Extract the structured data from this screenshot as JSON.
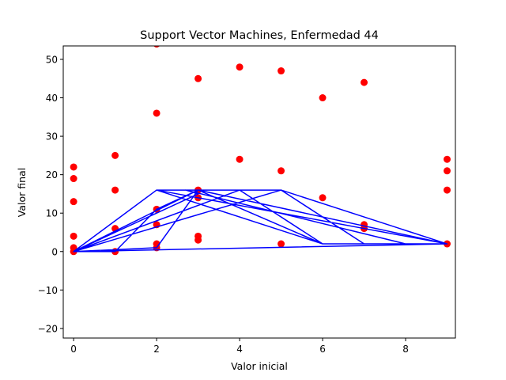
{
  "chart_data": {
    "type": "scatter",
    "title": "Support Vector Machines, Enfermedad 44",
    "xlabel": "Valor inicial",
    "ylabel": "Valor final",
    "xlim": [
      -0.25,
      9.2
    ],
    "ylim": [
      -22.5,
      53.5
    ],
    "xticks": [
      0,
      2,
      4,
      6,
      8
    ],
    "yticks": [
      -20,
      -10,
      0,
      10,
      20,
      30,
      40,
      50
    ],
    "scatter": {
      "color": "#ff0000",
      "points": [
        [
          0,
          22
        ],
        [
          0,
          19
        ],
        [
          0,
          13
        ],
        [
          0,
          4
        ],
        [
          0,
          1
        ],
        [
          0,
          0
        ],
        [
          1,
          25
        ],
        [
          1,
          16
        ],
        [
          1,
          6
        ],
        [
          1,
          0
        ],
        [
          2,
          54
        ],
        [
          2,
          36
        ],
        [
          2,
          11
        ],
        [
          2,
          7
        ],
        [
          2,
          2
        ],
        [
          2,
          1
        ],
        [
          3,
          45
        ],
        [
          3,
          16
        ],
        [
          3,
          14
        ],
        [
          3,
          4
        ],
        [
          3,
          3
        ],
        [
          4,
          48
        ],
        [
          4,
          24
        ],
        [
          5,
          47
        ],
        [
          5,
          21
        ],
        [
          5,
          2
        ],
        [
          6,
          40
        ],
        [
          6,
          14
        ],
        [
          7,
          44
        ],
        [
          7,
          7
        ],
        [
          7,
          6
        ],
        [
          9,
          24
        ],
        [
          9,
          21
        ],
        [
          9,
          16
        ],
        [
          9,
          2
        ]
      ]
    },
    "line": {
      "color": "#0000ff",
      "points": [
        [
          0,
          0
        ],
        [
          2,
          16
        ],
        [
          5,
          16
        ],
        [
          9,
          2
        ],
        [
          0,
          0
        ],
        [
          2,
          1
        ],
        [
          3,
          16
        ],
        [
          6,
          2
        ],
        [
          9,
          2
        ],
        [
          0,
          0
        ],
        [
          1,
          0
        ],
        [
          2,
          11
        ],
        [
          3,
          16
        ],
        [
          9,
          2
        ],
        [
          0,
          0
        ],
        [
          5,
          16
        ],
        [
          7,
          2
        ],
        [
          9,
          2
        ],
        [
          0,
          0
        ],
        [
          3,
          15
        ],
        [
          2.7,
          16
        ],
        [
          8,
          2
        ],
        [
          9,
          2
        ],
        [
          0,
          0
        ],
        [
          4,
          16
        ],
        [
          6,
          2
        ],
        [
          9,
          2
        ],
        [
          0,
          0
        ],
        [
          2,
          16
        ],
        [
          6,
          2
        ],
        [
          9,
          2
        ],
        [
          5,
          16
        ],
        [
          9,
          2
        ],
        [
          2,
          16
        ],
        [
          9,
          2
        ],
        [
          0,
          0
        ],
        [
          3,
          16
        ],
        [
          9,
          2
        ],
        [
          0,
          0
        ]
      ]
    }
  }
}
